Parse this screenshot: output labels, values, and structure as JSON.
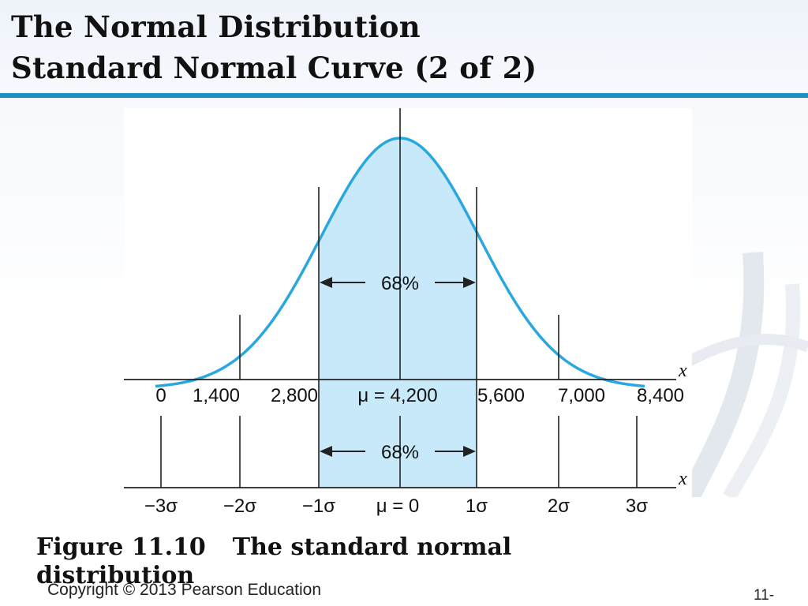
{
  "slide": {
    "title_line1": "The Normal Distribution",
    "title_line2": "Standard Normal Curve (2 of 2)",
    "caption_figure": "Figure 11.10",
    "caption_text": "The standard normal distribution",
    "copyright": "Copyright © 2013 Pearson Education",
    "page_number": "11-"
  },
  "colors": {
    "accent_rule": "#1f8fc4",
    "curve": "#29a7de",
    "shaded_region": "#c8e9fa"
  },
  "diagram": {
    "shaded_label_top": "68%",
    "shaded_label_bottom": "68%",
    "axis_label_top": "x",
    "axis_label_bottom": "x",
    "top_axis_ticks": [
      "0",
      "1,400",
      "2,800",
      "μ = 4,200",
      "5,600",
      "7,000",
      "8,400"
    ],
    "bottom_axis_ticks": [
      "−3σ",
      "−2σ",
      "−1σ",
      "μ = 0",
      "1σ",
      "2σ",
      "3σ"
    ]
  }
}
